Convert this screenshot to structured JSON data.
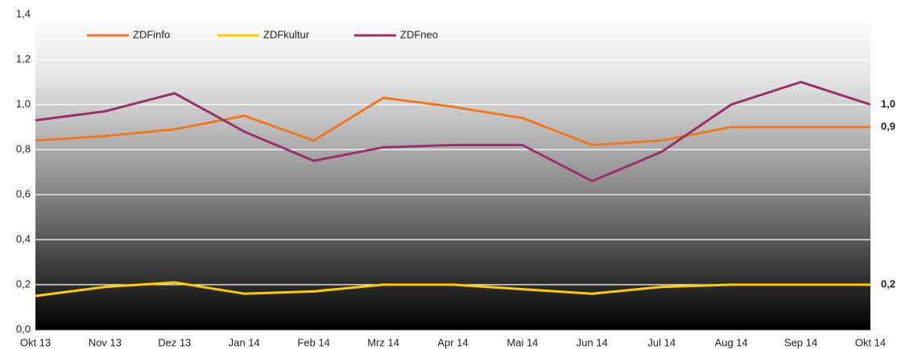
{
  "chart_data": {
    "type": "line",
    "categories": [
      "Okt 13",
      "Nov 13",
      "Dez 13",
      "Jan 14",
      "Feb 14",
      "Mrz 14",
      "Apr 14",
      "Mai 14",
      "Jun 14",
      "Jul 14",
      "Aug 14",
      "Sep 14",
      "Okt 14"
    ],
    "series": [
      {
        "name": "ZDFinfo",
        "color": "#f07820",
        "values": [
          0.84,
          0.86,
          0.89,
          0.95,
          0.84,
          1.03,
          0.99,
          0.94,
          0.82,
          0.84,
          0.9,
          0.9,
          0.9
        ],
        "end_label": "0,9"
      },
      {
        "name": "ZDFkultur",
        "color": "#ffcc00",
        "values": [
          0.15,
          0.19,
          0.21,
          0.16,
          0.17,
          0.2,
          0.2,
          0.18,
          0.16,
          0.19,
          0.2,
          0.2,
          0.2
        ],
        "end_label": "0,2"
      },
      {
        "name": "ZDFneo",
        "color": "#993366",
        "values": [
          0.93,
          0.97,
          1.05,
          0.88,
          0.75,
          0.81,
          0.82,
          0.82,
          0.66,
          0.79,
          1.0,
          1.1,
          1.0
        ],
        "end_label": "1,0"
      }
    ],
    "ylim": [
      0,
      1.4
    ],
    "yticks": [
      {
        "value": 0,
        "label": "0,0"
      },
      {
        "value": 0.2,
        "label": "0,2"
      },
      {
        "value": 0.4,
        "label": "0,4"
      },
      {
        "value": 0.6,
        "label": "0,6"
      },
      {
        "value": 0.8,
        "label": "0,8"
      },
      {
        "value": 1.0,
        "label": "1,0"
      },
      {
        "value": 1.2,
        "label": "1,2"
      },
      {
        "value": 1.4,
        "label": "1,4"
      }
    ],
    "grid": true,
    "legend": "top"
  }
}
